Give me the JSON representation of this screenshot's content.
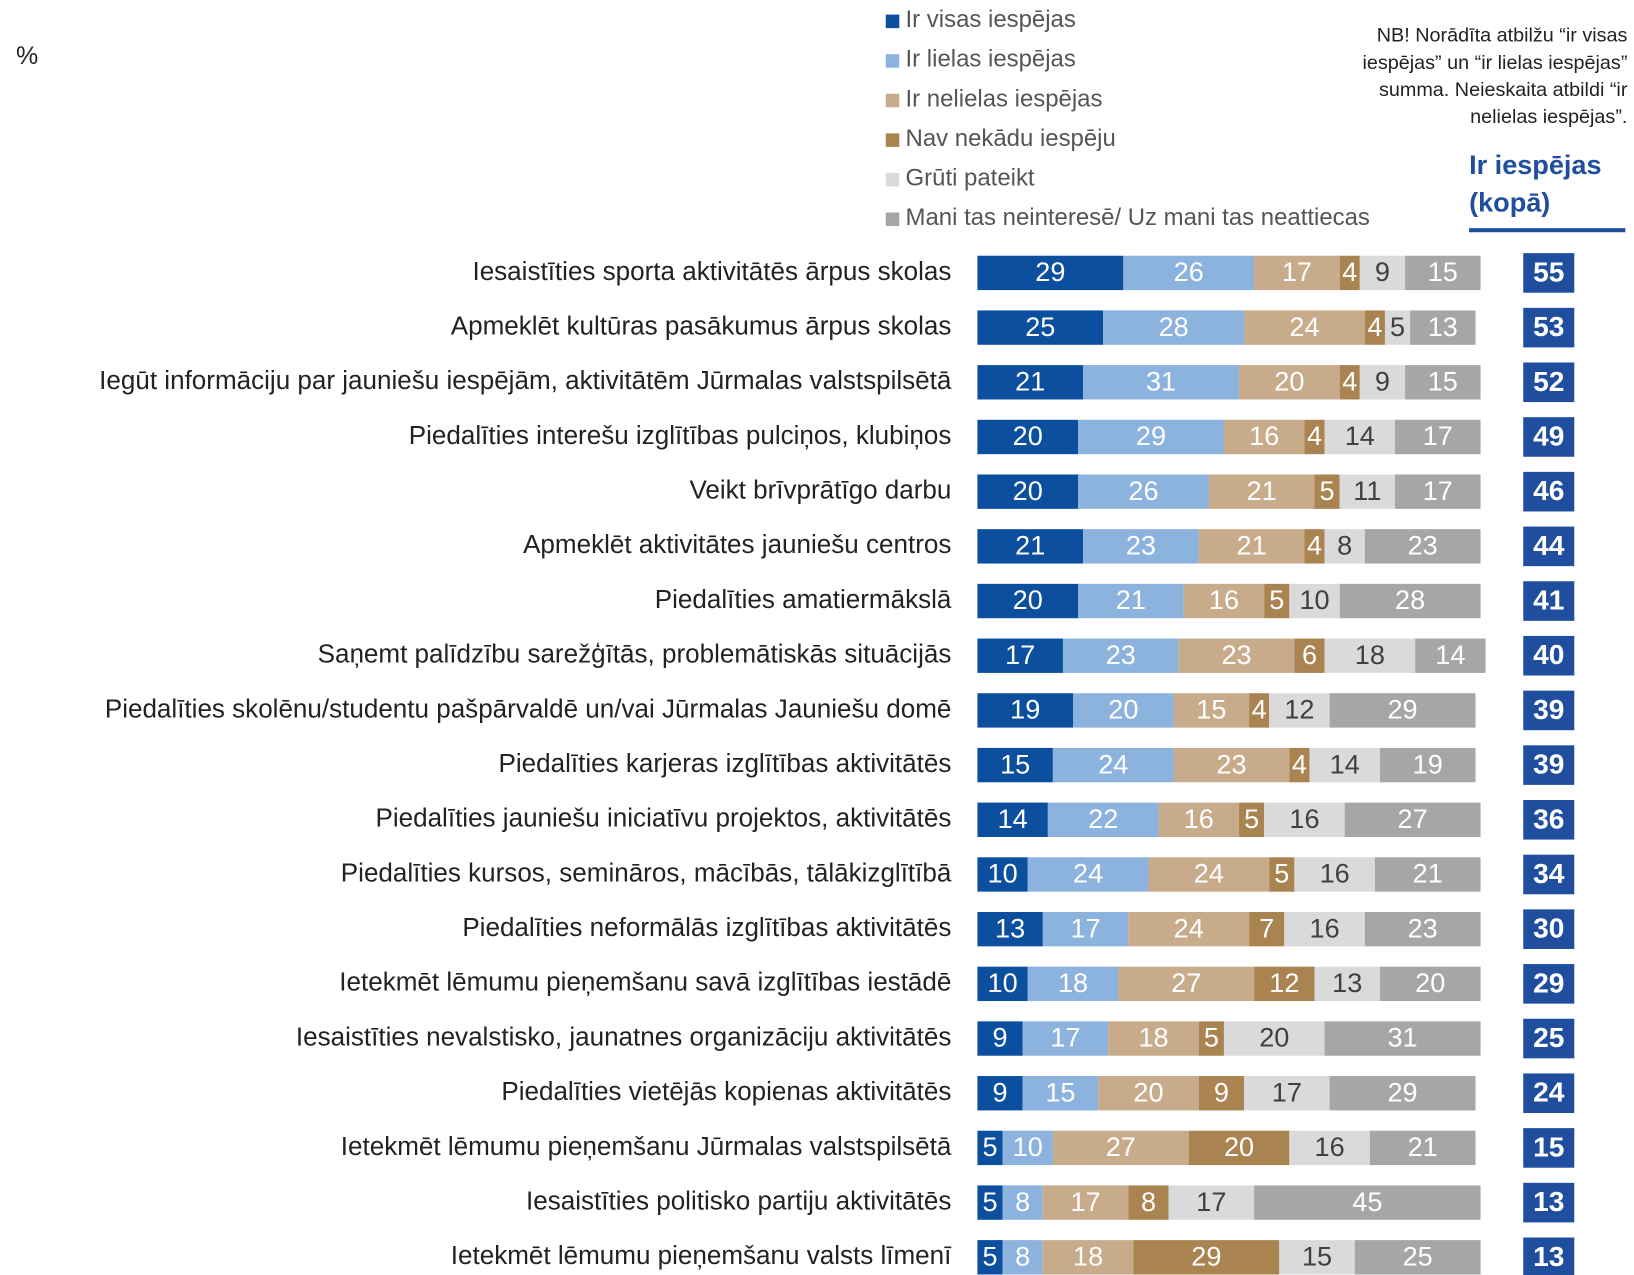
{
  "chart_data": {
    "type": "stacked_bar_horizontal",
    "unit_label": "%",
    "note": [
      "NB! Norādīta atbilžu “ir visas",
      "iespējas” un “ir lielas iespējas”",
      "summa. Neieskaita atbildi “ir",
      "nelielas iespējas”."
    ],
    "categories": [
      "Iesaistīties sporta aktivitātēs ārpus skolas",
      "Apmeklēt kultūras pasākumus ārpus skolas",
      "Iegūt informāciju par jauniešu iespējām, aktivitātēm Jūrmalas valstspilsētā",
      "Piedalīties interešu izglītības pulciņos, klubiņos",
      "Veikt brīvprātīgo darbu",
      "Apmeklēt aktivitātes jauniešu centros",
      "Piedalīties amatiermākslā",
      "Saņemt palīdzību sarežģītās, problemātiskās situācijās",
      "Piedalīties skolēnu/studentu pašpārvaldē un/vai Jūrmalas Jauniešu domē",
      "Piedalīties karjeras izglītības aktivitātēs",
      "Piedalīties jauniešu iniciatīvu projektos, aktivitātēs",
      "Piedalīties kursos, semināros, mācībās, tālākizglītībā",
      "Piedalīties neformālās izglītības aktivitātēs",
      "Ietekmēt lēmumu pieņemšanu savā izglītības iestādē",
      "Iesaistīties nevalstisko, jaunatnes organizāciju aktivitātēs",
      "Piedalīties vietējās kopienas aktivitātēs",
      "Ietekmēt lēmumu pieņemšanu Jūrmalas valstspilsētā",
      "Iesaistīties politisko partiju aktivitātēs",
      "Ietekmēt lēmumu pieņemšanu valsts līmenī"
    ],
    "xlim": [
      0,
      100
    ],
    "series": [
      {
        "name": "Ir visas iespējas",
        "color": "#0b4f9e",
        "label_color": "#ffffff",
        "values": [
          29,
          25,
          21,
          20,
          20,
          21,
          20,
          17,
          19,
          15,
          14,
          10,
          13,
          10,
          9,
          9,
          5,
          5,
          5
        ]
      },
      {
        "name": "Ir lielas iespējas",
        "color": "#8cb2de",
        "label_color": "#ffffff",
        "values": [
          26,
          28,
          31,
          29,
          26,
          23,
          21,
          23,
          20,
          24,
          22,
          24,
          17,
          18,
          17,
          15,
          10,
          8,
          8
        ]
      },
      {
        "name": "Ir nelielas iespējas",
        "color": "#c8ab8b",
        "label_color": "#ffffff",
        "values": [
          17,
          24,
          20,
          16,
          21,
          21,
          16,
          23,
          15,
          23,
          16,
          24,
          24,
          27,
          18,
          20,
          27,
          17,
          18
        ]
      },
      {
        "name": "Nav nekādu iespēju",
        "color": "#a98350",
        "label_color": "#ffffff",
        "values": [
          4,
          4,
          4,
          4,
          5,
          4,
          5,
          6,
          4,
          4,
          5,
          5,
          7,
          12,
          5,
          9,
          20,
          8,
          29
        ]
      },
      {
        "name": "Grūti pateikt",
        "color": "#dadada",
        "label_color": "#404040",
        "values": [
          9,
          5,
          9,
          14,
          11,
          8,
          10,
          18,
          12,
          14,
          16,
          16,
          16,
          13,
          20,
          17,
          16,
          17,
          15
        ]
      },
      {
        "name": "Mani tas neinteresē/ Uz mani tas neattiecas",
        "color": "#a6a6a6",
        "label_color": "#ffffff",
        "values": [
          15,
          13,
          15,
          17,
          17,
          23,
          28,
          14,
          29,
          19,
          27,
          21,
          23,
          20,
          31,
          29,
          21,
          45,
          25
        ]
      }
    ],
    "totals": {
      "title": [
        "Ir iespējas",
        "(kopā)"
      ],
      "color": "#1f4e9e",
      "values": [
        55,
        53,
        52,
        49,
        46,
        44,
        41,
        40,
        39,
        39,
        36,
        34,
        30,
        29,
        25,
        24,
        15,
        13,
        13
      ]
    }
  }
}
